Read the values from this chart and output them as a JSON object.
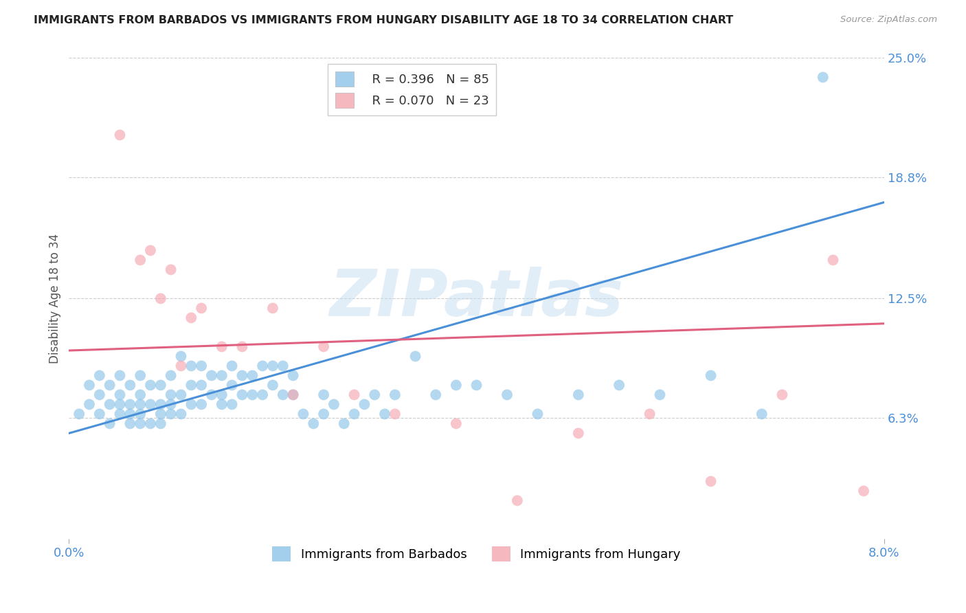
{
  "title": "IMMIGRANTS FROM BARBADOS VS IMMIGRANTS FROM HUNGARY DISABILITY AGE 18 TO 34 CORRELATION CHART",
  "source": "Source: ZipAtlas.com",
  "ylabel_label": "Disability Age 18 to 34",
  "right_ytick_labels": [
    "6.3%",
    "12.5%",
    "18.8%",
    "25.0%"
  ],
  "right_ytick_positions": [
    0.063,
    0.125,
    0.188,
    0.25
  ],
  "xlim": [
    0.0,
    0.08
  ],
  "ylim": [
    0.0,
    0.25
  ],
  "barbados_R": 0.396,
  "barbados_N": 85,
  "hungary_R": 0.07,
  "hungary_N": 23,
  "barbados_color": "#8cc4e8",
  "hungary_color": "#f4a7b0",
  "barbados_line_color": "#4a90d9",
  "hungary_line_color": "#e06080",
  "watermark_text": "ZIPatlas",
  "watermark_color": "#c5dff0",
  "grid_color": "#cccccc",
  "background_color": "#ffffff",
  "barbados_line_x0": 0.0,
  "barbados_line_y0": 0.055,
  "barbados_line_x1": 0.08,
  "barbados_line_y1": 0.175,
  "hungary_line_x0": 0.0,
  "hungary_line_y0": 0.098,
  "hungary_line_x1": 0.08,
  "hungary_line_y1": 0.112,
  "barbados_x": [
    0.001,
    0.002,
    0.002,
    0.003,
    0.003,
    0.003,
    0.004,
    0.004,
    0.004,
    0.005,
    0.005,
    0.005,
    0.005,
    0.006,
    0.006,
    0.006,
    0.006,
    0.007,
    0.007,
    0.007,
    0.007,
    0.007,
    0.008,
    0.008,
    0.008,
    0.009,
    0.009,
    0.009,
    0.009,
    0.01,
    0.01,
    0.01,
    0.01,
    0.011,
    0.011,
    0.011,
    0.012,
    0.012,
    0.012,
    0.013,
    0.013,
    0.013,
    0.014,
    0.014,
    0.015,
    0.015,
    0.015,
    0.016,
    0.016,
    0.016,
    0.017,
    0.017,
    0.018,
    0.018,
    0.019,
    0.019,
    0.02,
    0.02,
    0.021,
    0.021,
    0.022,
    0.022,
    0.023,
    0.024,
    0.025,
    0.025,
    0.026,
    0.027,
    0.028,
    0.029,
    0.03,
    0.031,
    0.032,
    0.034,
    0.036,
    0.038,
    0.04,
    0.043,
    0.046,
    0.05,
    0.054,
    0.058,
    0.063,
    0.068,
    0.074
  ],
  "barbados_y": [
    0.065,
    0.07,
    0.08,
    0.065,
    0.075,
    0.085,
    0.06,
    0.07,
    0.08,
    0.065,
    0.07,
    0.075,
    0.085,
    0.06,
    0.065,
    0.07,
    0.08,
    0.06,
    0.065,
    0.07,
    0.075,
    0.085,
    0.06,
    0.07,
    0.08,
    0.06,
    0.065,
    0.07,
    0.08,
    0.065,
    0.07,
    0.075,
    0.085,
    0.065,
    0.075,
    0.095,
    0.07,
    0.08,
    0.09,
    0.07,
    0.08,
    0.09,
    0.075,
    0.085,
    0.07,
    0.075,
    0.085,
    0.07,
    0.08,
    0.09,
    0.075,
    0.085,
    0.075,
    0.085,
    0.075,
    0.09,
    0.08,
    0.09,
    0.075,
    0.09,
    0.075,
    0.085,
    0.065,
    0.06,
    0.065,
    0.075,
    0.07,
    0.06,
    0.065,
    0.07,
    0.075,
    0.065,
    0.075,
    0.095,
    0.075,
    0.08,
    0.08,
    0.075,
    0.065,
    0.075,
    0.08,
    0.075,
    0.085,
    0.065,
    0.24
  ],
  "hungary_x": [
    0.005,
    0.007,
    0.008,
    0.009,
    0.01,
    0.011,
    0.012,
    0.013,
    0.015,
    0.017,
    0.02,
    0.022,
    0.025,
    0.028,
    0.032,
    0.038,
    0.044,
    0.05,
    0.057,
    0.063,
    0.07,
    0.075,
    0.078
  ],
  "hungary_y": [
    0.21,
    0.145,
    0.15,
    0.125,
    0.14,
    0.09,
    0.115,
    0.12,
    0.1,
    0.1,
    0.12,
    0.075,
    0.1,
    0.075,
    0.065,
    0.06,
    0.02,
    0.055,
    0.065,
    0.03,
    0.075,
    0.145,
    0.025
  ]
}
